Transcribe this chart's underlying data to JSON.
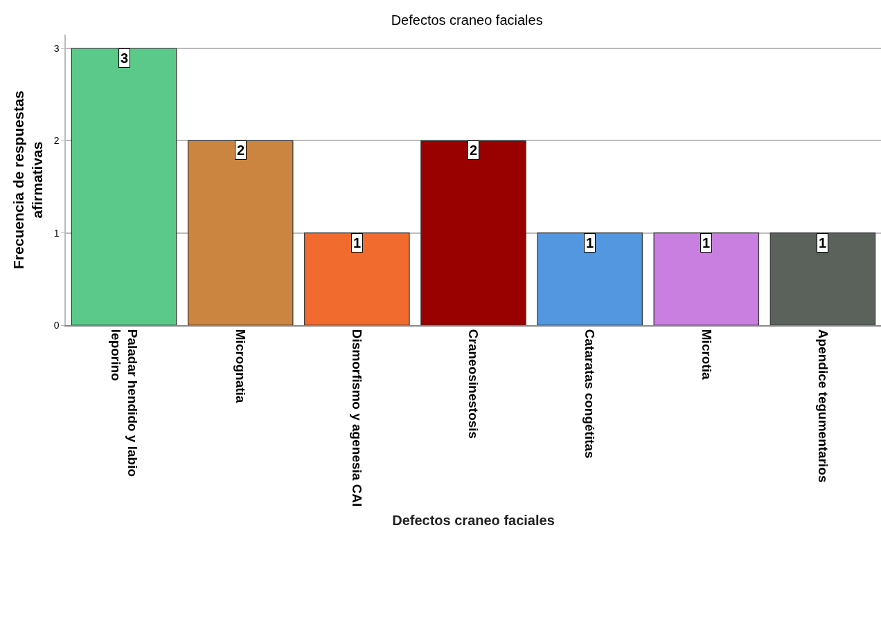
{
  "chart_data": {
    "type": "bar",
    "title": "Defectos craneo faciales",
    "xlabel": "Defectos craneo faciales",
    "ylabel": "Frecuencia de respuestas\nafirmativas",
    "categories": [
      "Paladar hendido y labio\nleporino",
      "Micrognatia",
      "Dismorfismo y agenesia CAI",
      "Craneosinestosis",
      "Cataratas congétitas",
      "Microtia",
      "Apendice tegumentarios"
    ],
    "values": [
      3,
      2,
      1,
      2,
      1,
      1,
      1
    ],
    "colors": [
      "#5ac98a",
      "#cc8540",
      "#f26b2e",
      "#990000",
      "#5397e0",
      "#c87fe0",
      "#5b625c"
    ],
    "ylim": [
      0,
      3.15
    ],
    "yticks": [
      0,
      1,
      2,
      3
    ],
    "grid": "y",
    "data_labels": true
  }
}
